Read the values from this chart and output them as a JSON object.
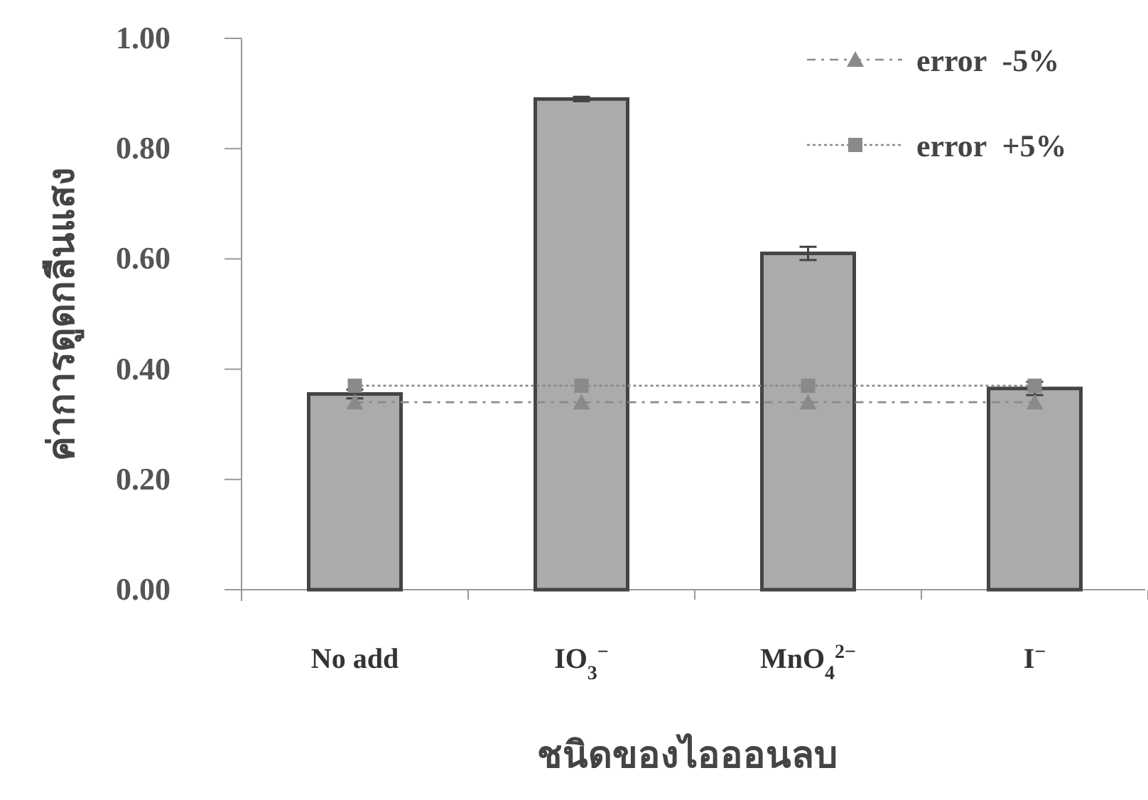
{
  "chart_data": {
    "type": "bar",
    "xlabel": "ชนิดของไอออนลบ",
    "ylabel": "ค่าการดูดกลืนแสง",
    "categories": [
      "No add",
      "IO$_{3}$$^{−}$",
      "MnO$_{4}$$^{2−}$",
      "I$^{−}$"
    ],
    "ylim": [
      0,
      1
    ],
    "yticks": [
      {
        "value": 0,
        "label": "0.00"
      },
      {
        "value": 0.2,
        "label": "0.20"
      },
      {
        "value": 0.4,
        "label": "0.40"
      },
      {
        "value": 0.6,
        "label": "0.60"
      },
      {
        "value": 0.8,
        "label": "0.80"
      },
      {
        "value": 1,
        "label": "1.00"
      }
    ],
    "grid": false,
    "legend": "top right",
    "series": [
      {
        "color": "#ababab",
        "values": [
          0.355,
          0.89,
          0.61,
          0.365
        ],
        "errors": [
          0.008,
          0.004,
          0.012,
          0.012
        ]
      },
      {
        "type": "line",
        "name": "error  -5%",
        "color": "#8a8a8a",
        "values": [
          0.34,
          0.34,
          0.34,
          0.34
        ],
        "marker": "triangle",
        "line_style": "dashed"
      },
      {
        "type": "line",
        "name": "error  +5%",
        "color": "#8a8a8a",
        "values": [
          0.37,
          0.37,
          0.37,
          0.37
        ],
        "marker": "square",
        "line_style": "dotted"
      }
    ]
  }
}
